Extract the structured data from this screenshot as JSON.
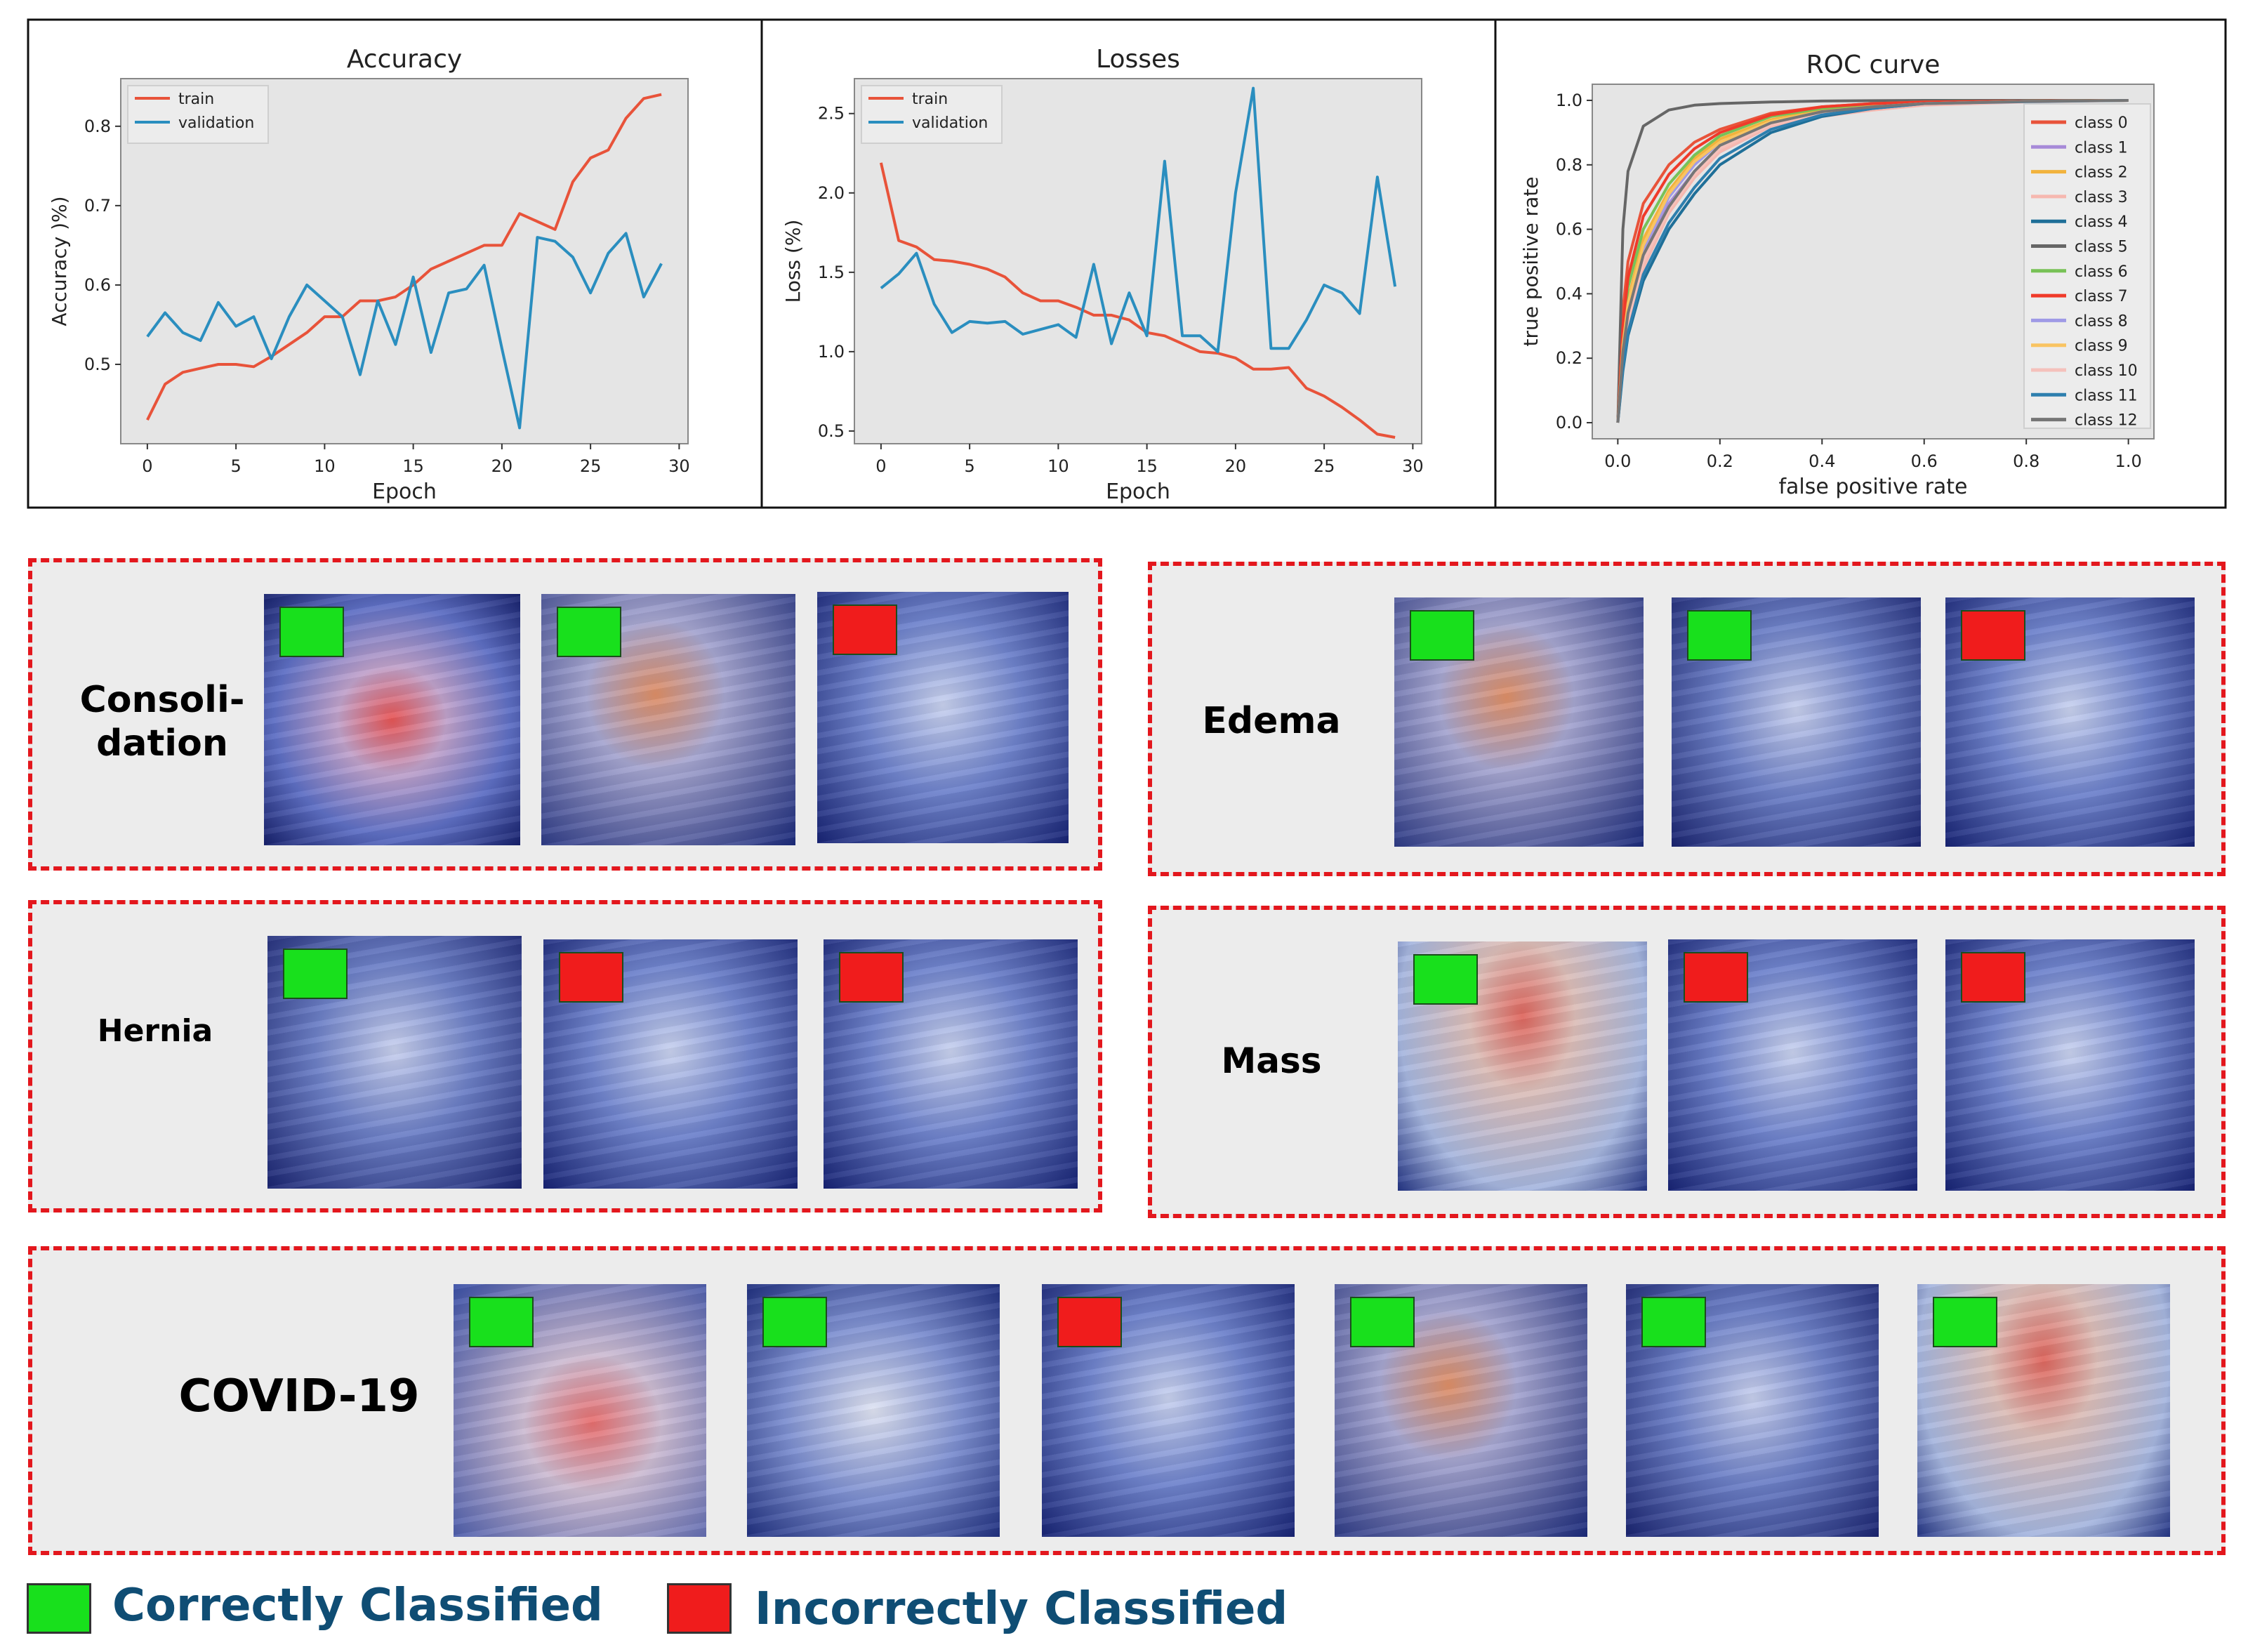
{
  "colors": {
    "train": "#e8533a",
    "validation": "#2a8ebf",
    "correct": "#18e01c",
    "incorrect": "#f01c1c",
    "dash": "#e3171d",
    "legend_text": "#0f4d74"
  },
  "chart_data": [
    {
      "type": "line",
      "title": "Accuracy",
      "xlabel": "Epoch",
      "ylabel": "Accuracy )%)",
      "xlim": [
        -1.5,
        30.5
      ],
      "ylim": [
        0.4,
        0.86
      ],
      "xticks": [
        0,
        5,
        10,
        15,
        20,
        25,
        30
      ],
      "yticks": [
        0.5,
        0.6,
        0.7,
        0.8
      ],
      "legend_position": "top-left",
      "x": [
        0,
        1,
        2,
        3,
        4,
        5,
        6,
        7,
        8,
        9,
        10,
        11,
        12,
        13,
        14,
        15,
        16,
        17,
        18,
        19,
        20,
        21,
        22,
        23,
        24,
        25,
        26,
        27,
        28,
        29
      ],
      "series": [
        {
          "name": "train",
          "color": "#e8533a",
          "values": [
            0.43,
            0.475,
            0.49,
            0.495,
            0.5,
            0.5,
            0.497,
            0.51,
            0.525,
            0.54,
            0.56,
            0.56,
            0.58,
            0.58,
            0.585,
            0.6,
            0.62,
            0.63,
            0.64,
            0.65,
            0.65,
            0.69,
            0.68,
            0.67,
            0.73,
            0.76,
            0.77,
            0.81,
            0.835,
            0.84
          ]
        },
        {
          "name": "validation",
          "color": "#2a8ebf",
          "values": [
            0.535,
            0.565,
            0.54,
            0.53,
            0.578,
            0.548,
            0.56,
            0.507,
            0.56,
            0.6,
            0.58,
            0.56,
            0.487,
            0.58,
            0.525,
            0.61,
            0.515,
            0.59,
            0.595,
            0.625,
            0.52,
            0.42,
            0.66,
            0.655,
            0.635,
            0.59,
            0.64,
            0.665,
            0.585,
            0.627
          ]
        }
      ]
    },
    {
      "type": "line",
      "title": "Losses",
      "xlabel": "Epoch",
      "ylabel": "Loss (%)",
      "xlim": [
        -1.5,
        30.5
      ],
      "ylim": [
        0.42,
        2.72
      ],
      "xticks": [
        0,
        5,
        10,
        15,
        20,
        25,
        30
      ],
      "yticks": [
        0.5,
        1.0,
        1.5,
        2.0,
        2.5
      ],
      "legend_position": "top-left",
      "x": [
        0,
        1,
        2,
        3,
        4,
        5,
        6,
        7,
        8,
        9,
        10,
        11,
        12,
        13,
        14,
        15,
        16,
        17,
        18,
        19,
        20,
        21,
        22,
        23,
        24,
        25,
        26,
        27,
        28,
        29
      ],
      "series": [
        {
          "name": "train",
          "color": "#e8533a",
          "values": [
            2.19,
            1.7,
            1.66,
            1.58,
            1.57,
            1.55,
            1.52,
            1.47,
            1.37,
            1.32,
            1.32,
            1.28,
            1.23,
            1.23,
            1.2,
            1.12,
            1.1,
            1.05,
            1.0,
            0.99,
            0.96,
            0.89,
            0.89,
            0.9,
            0.77,
            0.72,
            0.65,
            0.57,
            0.48,
            0.46
          ]
        },
        {
          "name": "validation",
          "color": "#2a8ebf",
          "values": [
            1.4,
            1.49,
            1.62,
            1.3,
            1.12,
            1.19,
            1.18,
            1.19,
            1.11,
            1.14,
            1.17,
            1.09,
            1.55,
            1.05,
            1.37,
            1.1,
            2.2,
            1.1,
            1.1,
            1.0,
            2.0,
            2.66,
            1.02,
            1.02,
            1.2,
            1.42,
            1.37,
            1.24,
            2.1,
            1.41
          ]
        }
      ]
    },
    {
      "type": "line",
      "title": "ROC curve",
      "xlabel": "false positive rate",
      "ylabel": "true positive rate",
      "xlim": [
        -0.05,
        1.05
      ],
      "ylim": [
        -0.05,
        1.05
      ],
      "xticks": [
        0.0,
        0.2,
        0.4,
        0.6,
        0.8,
        1.0
      ],
      "yticks": [
        0.0,
        0.2,
        0.4,
        0.6,
        0.8,
        1.0
      ],
      "legend_position": "right",
      "x": [
        0.0,
        0.01,
        0.02,
        0.05,
        0.1,
        0.15,
        0.2,
        0.3,
        0.4,
        0.5,
        0.6,
        0.8,
        1.0
      ],
      "series": [
        {
          "name": "class 0",
          "color": "#e8533a",
          "values": [
            0.0,
            0.35,
            0.5,
            0.68,
            0.8,
            0.87,
            0.91,
            0.96,
            0.98,
            0.99,
            0.995,
            0.998,
            1.0
          ]
        },
        {
          "name": "class 1",
          "color": "#a78ad8",
          "values": [
            0.0,
            0.2,
            0.33,
            0.52,
            0.68,
            0.78,
            0.84,
            0.92,
            0.96,
            0.98,
            0.99,
            0.997,
            1.0
          ]
        },
        {
          "name": "class 2",
          "color": "#f2b33d",
          "values": [
            0.0,
            0.25,
            0.38,
            0.57,
            0.72,
            0.82,
            0.88,
            0.94,
            0.97,
            0.985,
            0.99,
            0.997,
            1.0
          ]
        },
        {
          "name": "class 3",
          "color": "#f6b8b0",
          "values": [
            0.0,
            0.18,
            0.3,
            0.48,
            0.65,
            0.76,
            0.84,
            0.92,
            0.95,
            0.97,
            0.985,
            0.995,
            1.0
          ]
        },
        {
          "name": "class 4",
          "color": "#1f6f98",
          "values": [
            0.0,
            0.16,
            0.27,
            0.44,
            0.6,
            0.71,
            0.8,
            0.9,
            0.95,
            0.975,
            0.99,
            0.997,
            1.0
          ]
        },
        {
          "name": "class 5",
          "color": "#666666",
          "values": [
            0.0,
            0.6,
            0.78,
            0.92,
            0.97,
            0.985,
            0.99,
            0.995,
            0.998,
            0.999,
            1.0,
            1.0,
            1.0
          ]
        },
        {
          "name": "class 6",
          "color": "#78c257",
          "values": [
            0.0,
            0.28,
            0.42,
            0.6,
            0.74,
            0.83,
            0.89,
            0.95,
            0.975,
            0.99,
            0.995,
            0.998,
            1.0
          ]
        },
        {
          "name": "class 7",
          "color": "#f03a2a",
          "values": [
            0.0,
            0.3,
            0.45,
            0.64,
            0.77,
            0.85,
            0.9,
            0.955,
            0.98,
            0.99,
            0.995,
            0.998,
            1.0
          ]
        },
        {
          "name": "class 8",
          "color": "#9f9ae6",
          "values": [
            0.0,
            0.22,
            0.35,
            0.54,
            0.7,
            0.8,
            0.87,
            0.93,
            0.965,
            0.98,
            0.99,
            0.997,
            1.0
          ]
        },
        {
          "name": "class 9",
          "color": "#f9c462",
          "values": [
            0.0,
            0.24,
            0.37,
            0.55,
            0.71,
            0.81,
            0.87,
            0.935,
            0.965,
            0.98,
            0.99,
            0.997,
            1.0
          ]
        },
        {
          "name": "class 10",
          "color": "#f5c1bb",
          "values": [
            0.0,
            0.2,
            0.32,
            0.5,
            0.66,
            0.77,
            0.85,
            0.925,
            0.96,
            0.978,
            0.99,
            0.996,
            1.0
          ]
        },
        {
          "name": "class 11",
          "color": "#2e7fae",
          "values": [
            0.0,
            0.17,
            0.28,
            0.46,
            0.62,
            0.73,
            0.82,
            0.91,
            0.955,
            0.975,
            0.99,
            0.996,
            1.0
          ]
        },
        {
          "name": "class 12",
          "color": "#767676",
          "values": [
            0.0,
            0.22,
            0.34,
            0.52,
            0.67,
            0.78,
            0.86,
            0.93,
            0.965,
            0.98,
            0.99,
            0.997,
            1.0
          ]
        }
      ]
    }
  ],
  "panels": [
    {
      "label": "Consoli-\ndation",
      "results": [
        "correct",
        "correct",
        "incorrect"
      ]
    },
    {
      "label": "Edema",
      "results": [
        "correct",
        "correct",
        "incorrect"
      ]
    },
    {
      "label": "Hernia",
      "results": [
        "correct",
        "incorrect",
        "incorrect"
      ]
    },
    {
      "label": "Mass",
      "results": [
        "correct",
        "incorrect",
        "incorrect"
      ]
    },
    {
      "label": "COVID-19",
      "results": [
        "correct",
        "correct",
        "incorrect",
        "correct",
        "correct",
        "correct"
      ]
    }
  ],
  "legend": {
    "correct_label": "Correctly Classified",
    "incorrect_label": "Incorrectly Classified"
  }
}
